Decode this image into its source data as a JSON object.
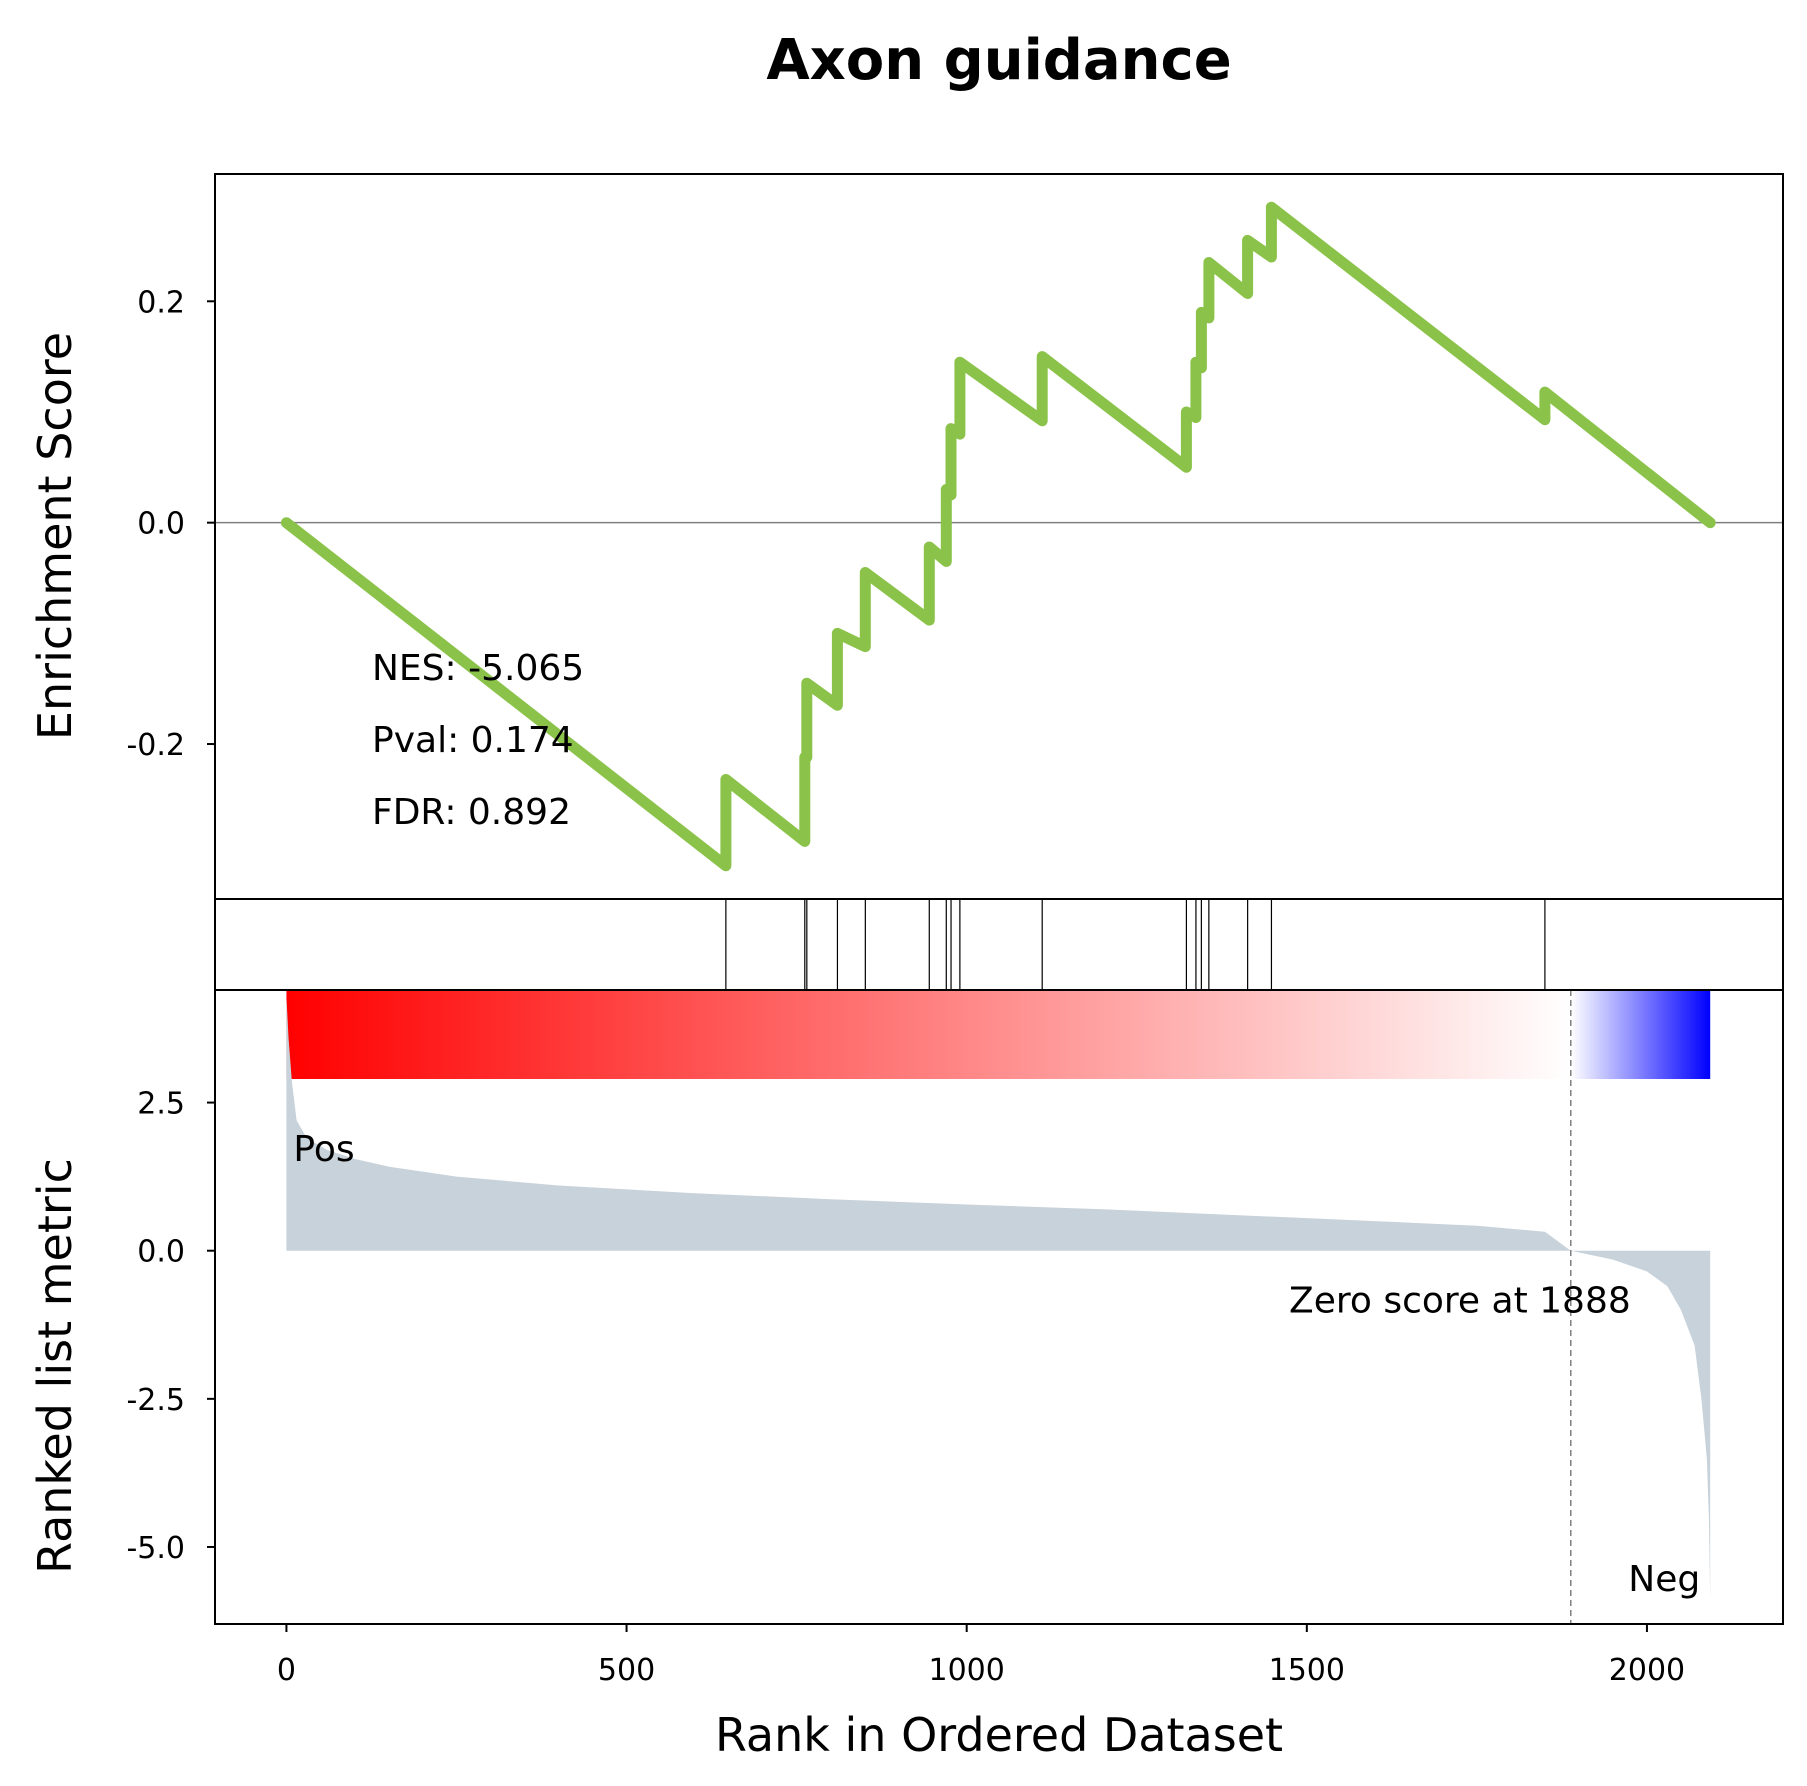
{
  "chart_data": {
    "type": "line",
    "title": "Axon guidance",
    "xlabel": "Rank in Ordered Dataset",
    "xlim": [
      -105,
      2200
    ],
    "x_ticks": [
      {
        "value": 0,
        "label": "0"
      },
      {
        "value": 500,
        "label": "500"
      },
      {
        "value": 1000,
        "label": "1000"
      },
      {
        "value": 1500,
        "label": "1500"
      },
      {
        "value": 2000,
        "label": "2000"
      }
    ],
    "enrichment": {
      "ylabel": "Enrichment Score",
      "ylim": [
        -0.34,
        0.315
      ],
      "y_ticks": [
        {
          "value": 0.2,
          "label": "0.2"
        },
        {
          "value": 0.0,
          "label": "0.0"
        },
        {
          "value": -0.2,
          "label": "-0.2"
        }
      ],
      "line_color": "#8bc34a",
      "zero_line": true,
      "points": [
        [
          0,
          0.0
        ],
        [
          646,
          -0.31
        ],
        [
          646,
          -0.232
        ],
        [
          762,
          -0.288
        ],
        [
          762,
          -0.212
        ],
        [
          765,
          -0.212
        ],
        [
          765,
          -0.145
        ],
        [
          810,
          -0.165
        ],
        [
          810,
          -0.1
        ],
        [
          851,
          -0.112
        ],
        [
          851,
          -0.045
        ],
        [
          945,
          -0.088
        ],
        [
          945,
          -0.022
        ],
        [
          970,
          -0.035
        ],
        [
          970,
          0.03
        ],
        [
          977,
          0.025
        ],
        [
          977,
          0.085
        ],
        [
          990,
          0.08
        ],
        [
          990,
          0.145
        ],
        [
          1111,
          0.092
        ],
        [
          1111,
          0.15
        ],
        [
          1323,
          0.05
        ],
        [
          1323,
          0.1
        ],
        [
          1337,
          0.095
        ],
        [
          1337,
          0.145
        ],
        [
          1345,
          0.14
        ],
        [
          1345,
          0.19
        ],
        [
          1356,
          0.185
        ],
        [
          1356,
          0.235
        ],
        [
          1413,
          0.207
        ],
        [
          1413,
          0.255
        ],
        [
          1448,
          0.24
        ],
        [
          1448,
          0.285
        ],
        [
          1850,
          0.093
        ],
        [
          1850,
          0.118
        ],
        [
          2093,
          0.0
        ]
      ],
      "annotations": [
        "NES: -5.065",
        "Pval: 0.174",
        "FDR: 0.892"
      ]
    },
    "hits": [
      646,
      762,
      765,
      810,
      851,
      945,
      970,
      977,
      990,
      1111,
      1323,
      1337,
      1345,
      1356,
      1413,
      1448,
      1850
    ],
    "colorbar": {
      "pos_color": "#ff0000",
      "mid_color": "#ffffff",
      "neg_color": "#0000ff"
    },
    "ranked_metric": {
      "ylabel": "Ranked list metric",
      "ylim": [
        -6.3,
        4.4
      ],
      "y_ticks": [
        {
          "value": 2.5,
          "label": "2.5"
        },
        {
          "value": 0.0,
          "label": "0.0"
        },
        {
          "value": -2.5,
          "label": "-2.5"
        },
        {
          "value": -5.0,
          "label": "-5.0"
        }
      ],
      "fill_color": "#c8d2da",
      "points": [
        [
          0,
          4.3
        ],
        [
          3,
          3.6
        ],
        [
          8,
          2.85
        ],
        [
          15,
          2.2
        ],
        [
          30,
          1.9
        ],
        [
          60,
          1.7
        ],
        [
          100,
          1.55
        ],
        [
          150,
          1.42
        ],
        [
          250,
          1.25
        ],
        [
          400,
          1.1
        ],
        [
          600,
          0.97
        ],
        [
          800,
          0.87
        ],
        [
          1000,
          0.78
        ],
        [
          1200,
          0.7
        ],
        [
          1400,
          0.6
        ],
        [
          1600,
          0.5
        ],
        [
          1750,
          0.42
        ],
        [
          1850,
          0.32
        ],
        [
          1888,
          0.0
        ],
        [
          1950,
          -0.15
        ],
        [
          2000,
          -0.35
        ],
        [
          2030,
          -0.6
        ],
        [
          2050,
          -1.0
        ],
        [
          2070,
          -1.6
        ],
        [
          2080,
          -2.5
        ],
        [
          2088,
          -3.5
        ],
        [
          2091,
          -4.5
        ],
        [
          2093,
          -5.9
        ]
      ],
      "zero_score_rank": 1888,
      "zero_score_label": "Zero score at 1888",
      "pos_label": "Pos",
      "neg_label": "Neg",
      "pos_label_color": "#ff0000",
      "neg_label_color": "#0000ff"
    }
  }
}
